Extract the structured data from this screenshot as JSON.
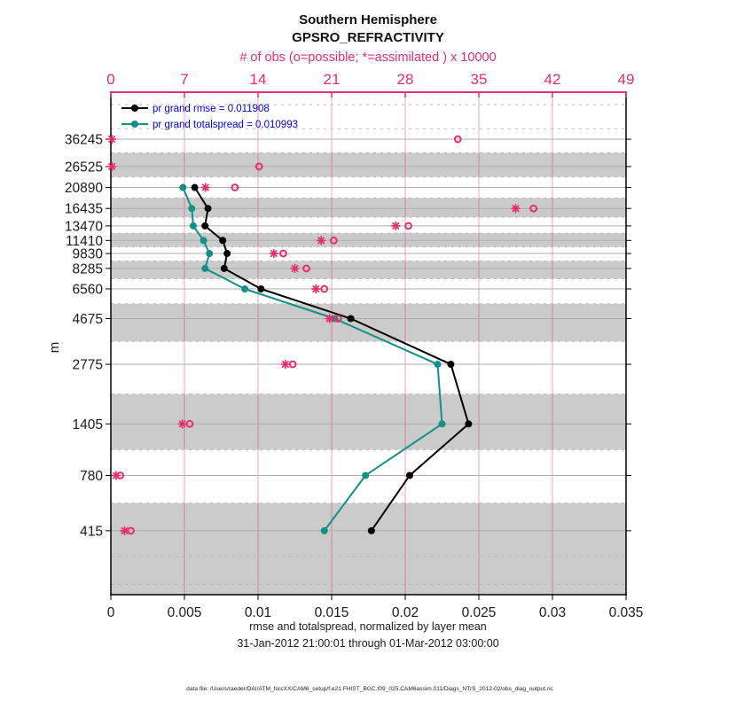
{
  "title": {
    "line1": "Southern Hemisphere",
    "line2": "GPSRO_REFRACTIVITY"
  },
  "colors": {
    "pink": "#e62e6c",
    "teal": "#129089",
    "legend_text": "#0000dd",
    "band": "#cbcbcb",
    "level_line": "#adadad",
    "dashed_line": "#b5b5b5",
    "axis": "#000000"
  },
  "legend": [
    {
      "label": "pr grand rmse = 0.011908",
      "color": "#000000"
    },
    {
      "label": "pr grand totalspread = 0.010993",
      "color": "#129089"
    }
  ],
  "footer": "data file: /Users/raeder/DAI/ATM_forcXX/CAM6_setup/f.e21.FHIST_BGC.f09_025.CAM6assim.011/Diags_NTrS_2012-02/obs_diag_output.nc",
  "chart_data": {
    "type": "line",
    "title": "Southern Hemisphere GPSRO_REFRACTIVITY",
    "y_axis": {
      "label": "m",
      "scale": "log",
      "range": [
        200,
        62000
      ],
      "tick_values": [
        36245,
        26525,
        20890,
        16435,
        13470,
        11410,
        9830,
        8285,
        6560,
        4675,
        2775,
        1405,
        780,
        415
      ]
    },
    "x_axis_bottom": {
      "label": "rmse and totalspread, normalized by layer mean",
      "sub_label": "31-Jan-2012 21:00:01 through 01-Mar-2012 03:00:00",
      "range": [
        0,
        0.035
      ],
      "ticks": [
        0,
        0.005,
        0.01,
        0.015,
        0.02,
        0.025,
        0.03,
        0.035
      ]
    },
    "x_axis_top": {
      "label": "# of obs (o=possible; *=assimilated ) x 10000",
      "range": [
        0,
        49
      ],
      "ticks": [
        0,
        7,
        14,
        21,
        28,
        35,
        42,
        49
      ]
    },
    "levels_m": [
      36245,
      26525,
      20890,
      16435,
      13470,
      11410,
      9830,
      8285,
      6560,
      4675,
      2775,
      1405,
      780,
      415
    ],
    "series": [
      {
        "name": "pr grand rmse",
        "color": "#000000",
        "marker": "dot",
        "values": [
          null,
          null,
          0.0057,
          0.0066,
          0.0064,
          0.0076,
          0.0079,
          0.0077,
          0.0102,
          0.0163,
          0.0231,
          0.0243,
          0.0203,
          0.0177
        ]
      },
      {
        "name": "pr grand totalspread",
        "color": "#129089",
        "marker": "dot",
        "values": [
          null,
          null,
          0.0049,
          0.0055,
          0.0056,
          0.0063,
          0.0067,
          0.0064,
          0.0091,
          0.0152,
          0.0222,
          0.0225,
          0.0173,
          0.0145
        ]
      }
    ],
    "obs_series": [
      {
        "name": "possible",
        "marker": "o",
        "values": [
          33.0,
          14.1,
          11.8,
          40.2,
          28.3,
          21.2,
          16.4,
          18.6,
          20.3,
          21.6,
          17.3,
          7.5,
          0.9,
          1.9
        ]
      },
      {
        "name": "assimilated",
        "marker": "*",
        "values": [
          0.1,
          0.1,
          9.0,
          38.5,
          27.1,
          20.0,
          15.5,
          17.5,
          19.5,
          20.8,
          16.6,
          6.8,
          0.5,
          1.3
        ]
      }
    ],
    "shaded_level_indices": [
      1,
      3,
      5,
      7,
      9,
      11,
      13
    ],
    "extra_dashed_values": [
      53800,
      40850,
      309,
      225
    ],
    "grid": true,
    "legend_position": "top-left"
  }
}
